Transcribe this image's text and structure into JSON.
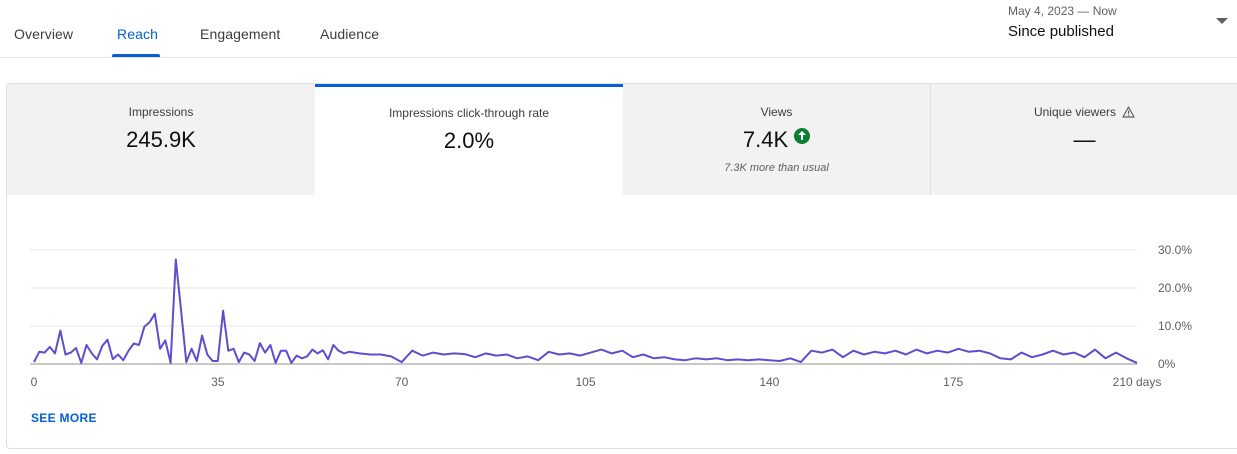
{
  "tabs": [
    {
      "label": "Overview",
      "active": false
    },
    {
      "label": "Reach",
      "active": true
    },
    {
      "label": "Engagement",
      "active": false
    },
    {
      "label": "Audience",
      "active": false
    }
  ],
  "date_range": {
    "period": "May 4, 2023 — Now",
    "selected": "Since published"
  },
  "metric_cards": [
    {
      "label": "Impressions",
      "value": "245.9K",
      "note": "",
      "selected": false
    },
    {
      "label": "Impressions click-through rate",
      "value": "2.0%",
      "note": "",
      "selected": true
    },
    {
      "label": "Views",
      "value": "7.4K",
      "note": "7.3K more than usual",
      "selected": false,
      "icon": "arrow-up-icon",
      "icon_color": "#0b7f2f"
    },
    {
      "label": "Unique viewers",
      "value": "—",
      "note": "",
      "selected": false,
      "icon": "warning-icon"
    }
  ],
  "colors": {
    "accent": "#065fd4",
    "series": "#5b4fcf",
    "up": "#0b7f2f"
  },
  "chart_data": {
    "type": "line",
    "title": "",
    "xlabel": "",
    "ylabel": "",
    "x_ticks": [
      "0",
      "35",
      "70",
      "105",
      "140",
      "175",
      "210 days"
    ],
    "x_tick_values": [
      0,
      35,
      70,
      105,
      140,
      175,
      210
    ],
    "y_ticks": [
      "0%",
      "10.0%",
      "20.0%",
      "30.0%"
    ],
    "y_tick_values": [
      0,
      10,
      20,
      30
    ],
    "xlim": [
      0,
      210
    ],
    "ylim": [
      0,
      30
    ],
    "grid": true,
    "series": [
      {
        "x": [
          0,
          1,
          2,
          3,
          4,
          5,
          6,
          7,
          8,
          9,
          10,
          11,
          12,
          13,
          14,
          15,
          16,
          17,
          18,
          19,
          20,
          21,
          22,
          23,
          24,
          25,
          26,
          27,
          28,
          29,
          30,
          31,
          32,
          33,
          34,
          35,
          36,
          37,
          38,
          39,
          40,
          41,
          42,
          43,
          44,
          45,
          46,
          47,
          48,
          49,
          50,
          51,
          52,
          53,
          54,
          55,
          56,
          57,
          58,
          59,
          60,
          62,
          64,
          66,
          68,
          70,
          72,
          74,
          76,
          78,
          80,
          82,
          84,
          86,
          88,
          90,
          92,
          94,
          96,
          98,
          100,
          102,
          104,
          106,
          108,
          110,
          112,
          114,
          116,
          118,
          120,
          122,
          124,
          126,
          128,
          130,
          132,
          134,
          136,
          138,
          140,
          142,
          144,
          146,
          148,
          150,
          152,
          154,
          156,
          158,
          160,
          162,
          164,
          166,
          168,
          170,
          172,
          174,
          176,
          178,
          180,
          182,
          184,
          186,
          188,
          190,
          192,
          194,
          196,
          198,
          200,
          202,
          204,
          206,
          208,
          210
        ],
        "values": [
          0.5,
          3.2,
          3.0,
          4.5,
          2.8,
          8.8,
          2.5,
          3.0,
          4.2,
          0.3,
          5.0,
          2.8,
          1.2,
          4.8,
          6.4,
          1.3,
          2.5,
          1.0,
          3.5,
          5.4,
          5.0,
          9.8,
          11.0,
          13.2,
          4.0,
          6.2,
          0.3,
          27.5,
          14.0,
          0.5,
          4.0,
          0.8,
          7.5,
          2.5,
          0.8,
          0.8,
          14.0,
          3.5,
          4.0,
          0.5,
          3.0,
          2.5,
          0.8,
          5.5,
          3.0,
          5.0,
          0.3,
          3.5,
          3.5,
          0.3,
          2.2,
          1.5,
          2.0,
          3.8,
          2.8,
          3.6,
          1.2,
          5.0,
          3.5,
          2.8,
          3.2,
          2.8,
          2.5,
          2.5,
          2.0,
          0.5,
          3.5,
          2.2,
          3.0,
          2.5,
          2.8,
          2.6,
          1.8,
          2.8,
          2.2,
          2.5,
          1.5,
          2.0,
          1.0,
          3.2,
          2.5,
          2.8,
          2.2,
          3.0,
          3.8,
          2.8,
          3.5,
          1.8,
          2.5,
          1.5,
          1.8,
          1.2,
          1.0,
          1.5,
          1.2,
          1.5,
          1.0,
          1.2,
          1.0,
          1.2,
          1.0,
          0.8,
          1.5,
          0.5,
          3.5,
          3.0,
          3.8,
          1.8,
          3.5,
          2.5,
          3.2,
          2.8,
          3.5,
          2.5,
          3.8,
          2.8,
          3.5,
          3.0,
          4.0,
          3.2,
          3.5,
          2.8,
          1.5,
          1.2,
          3.0,
          1.8,
          2.5,
          3.5,
          2.5,
          3.0,
          1.8,
          3.8,
          1.5,
          3.0,
          1.5,
          0.3
        ]
      }
    ]
  },
  "see_more": "SEE MORE"
}
